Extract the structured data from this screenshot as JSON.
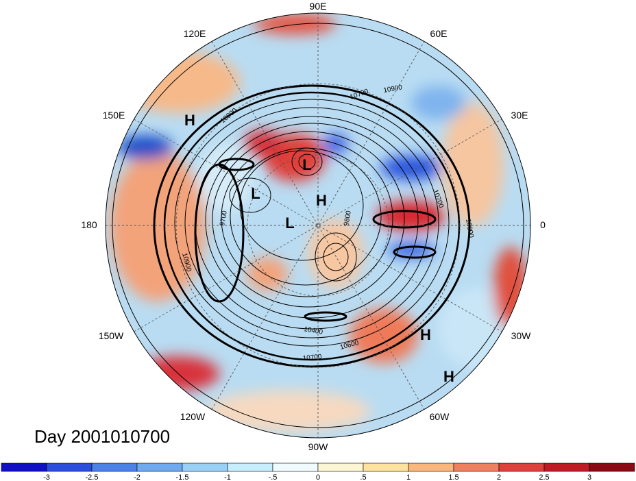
{
  "map": {
    "title": "Day 2001010700",
    "projection": "north-polar-stereographic",
    "longitude_labels": [
      "90E",
      "60E",
      "30E",
      "0",
      "30W",
      "60W",
      "90W",
      "120W",
      "150W",
      "180",
      "150E",
      "120E"
    ],
    "pressure_centers": [
      "H",
      "H",
      "H",
      "H",
      "L",
      "L",
      "L"
    ],
    "contour_labels": [
      "10900",
      "10900",
      "10700",
      "10700",
      "10800",
      "9700",
      "9800",
      "10900",
      "10400",
      "10600",
      "10700"
    ]
  },
  "colorbar": {
    "ticks": [
      "-3",
      "-2.5",
      "-2",
      "-1.5",
      "-1",
      "-.5",
      "0",
      ".5",
      "1",
      "1.5",
      "2",
      "2.5",
      "3"
    ],
    "colors": [
      "#1010c8",
      "#2a4fe0",
      "#4a82ea",
      "#6fa9f0",
      "#99d0f6",
      "#c6eefc",
      "#f0fbff",
      "#fdf6d4",
      "#fde2a0",
      "#f9b77d",
      "#f08060",
      "#e0403a",
      "#c01a22",
      "#8c0a14"
    ]
  },
  "colors": {
    "contour": "#000000",
    "graticule": "#555555"
  }
}
